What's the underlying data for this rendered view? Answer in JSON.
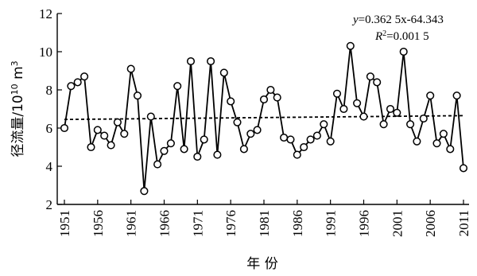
{
  "chart_data": {
    "type": "line",
    "xlabel": "年 份",
    "ylabel": "径流量/10",
    "ylabel_exp": "10",
    "ylabel_unit": " m",
    "ylabel_unit_exp": "3",
    "xlim": [
      1951,
      2011
    ],
    "ylim": [
      2,
      12
    ],
    "xticks": [
      1951,
      1956,
      1961,
      1966,
      1971,
      1976,
      1981,
      1986,
      1991,
      1996,
      2001,
      2006,
      2011
    ],
    "yticks": [
      2,
      4,
      6,
      8,
      10,
      12
    ],
    "x": [
      1951,
      1952,
      1953,
      1954,
      1955,
      1956,
      1957,
      1958,
      1959,
      1960,
      1961,
      1962,
      1963,
      1964,
      1965,
      1966,
      1967,
      1968,
      1969,
      1970,
      1971,
      1972,
      1973,
      1974,
      1975,
      1976,
      1977,
      1978,
      1979,
      1980,
      1981,
      1982,
      1983,
      1984,
      1985,
      1986,
      1987,
      1988,
      1989,
      1990,
      1991,
      1992,
      1993,
      1994,
      1995,
      1996,
      1997,
      1998,
      1999,
      2000,
      2001,
      2002,
      2003,
      2004,
      2005,
      2006,
      2007,
      2008,
      2009,
      2010,
      2011
    ],
    "values": [
      6.0,
      8.2,
      8.4,
      8.7,
      5.0,
      5.9,
      5.6,
      5.1,
      6.3,
      5.7,
      9.1,
      7.7,
      2.7,
      6.6,
      4.1,
      4.8,
      5.2,
      8.2,
      4.9,
      9.5,
      4.5,
      5.4,
      9.5,
      4.6,
      8.9,
      7.4,
      6.3,
      4.9,
      5.7,
      5.9,
      7.5,
      8.0,
      7.6,
      5.5,
      5.4,
      4.6,
      5.0,
      5.4,
      5.6,
      6.2,
      5.3,
      7.8,
      7.0,
      10.3,
      7.3,
      6.6,
      8.7,
      8.4,
      6.2,
      7.0,
      6.8,
      10.0,
      6.2,
      5.3,
      6.5,
      7.7,
      5.2,
      5.7,
      4.9,
      7.7,
      3.9
    ],
    "trend": {
      "slope": 0.00365,
      "intercept": -0.6,
      "style": "dashed"
    },
    "equation_y": "=0.362 5x-64.343",
    "equation_r2": "=0.001 5",
    "grid": false,
    "legend": "none"
  }
}
